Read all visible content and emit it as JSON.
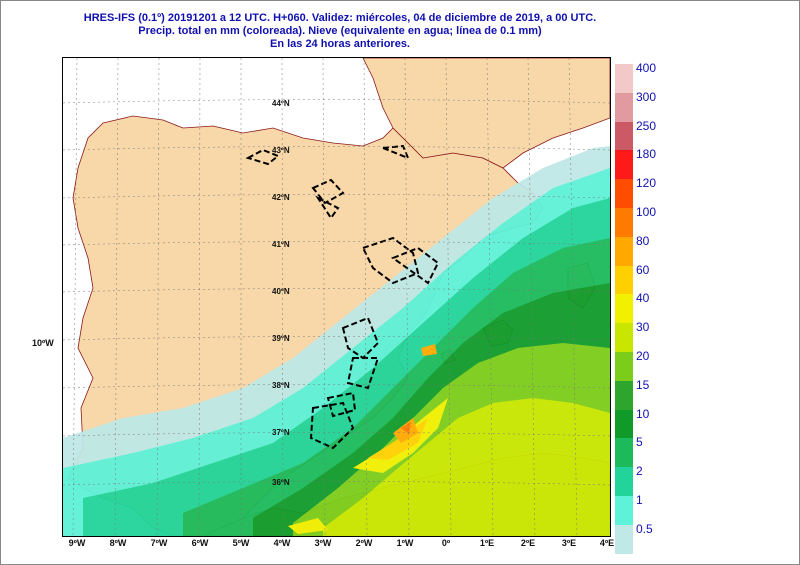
{
  "header": {
    "line1": "HRES-IFS (0.1º) 20191201 a 12 UTC.  H+060. Validez: miércoles, 04 de diciembre de 2019,  a  00 UTC.",
    "line2": "Precip. total en mm (coloreada). Nieve (equivalente en agua; línea de 0.1 mm)",
    "line3": "En las 24 horas anteriores."
  },
  "longitude_labels": [
    "9ºW",
    "8ºW",
    "7ºW",
    "6ºW",
    "5ºW",
    "4ºW",
    "3ºW",
    "2ºW",
    "1ºW",
    "0º",
    "1ºE",
    "2ºE",
    "3ºE",
    "4ºE"
  ],
  "latitude_labels": [
    "44ºN",
    "43ºN",
    "42ºN",
    "41ºN",
    "40ºN",
    "39ºN",
    "38ºN",
    "37ºN",
    "36ºN"
  ],
  "side_label": "10ºW",
  "legend": {
    "levels": [
      {
        "label": "400",
        "color": "#f2c8c8"
      },
      {
        "label": "300",
        "color": "#e09aa0"
      },
      {
        "label": "250",
        "color": "#cc5a66"
      },
      {
        "label": "180",
        "color": "#ff1a1a"
      },
      {
        "label": "120",
        "color": "#ff4d00"
      },
      {
        "label": "100",
        "color": "#ff7a00"
      },
      {
        "label": "80",
        "color": "#ffa800"
      },
      {
        "label": "60",
        "color": "#ffd000"
      },
      {
        "label": "40",
        "color": "#f0f000"
      },
      {
        "label": "30",
        "color": "#c8e600"
      },
      {
        "label": "20",
        "color": "#7ccc1a"
      },
      {
        "label": "15",
        "color": "#2ea62e"
      },
      {
        "label": "10",
        "color": "#109a2a"
      },
      {
        "label": "5",
        "color": "#1cba5a"
      },
      {
        "label": "2",
        "color": "#22d49a"
      },
      {
        "label": "1",
        "color": "#5ef2d8"
      },
      {
        "label": "0.5",
        "color": "#bfe8e6"
      }
    ]
  },
  "colors": {
    "land": "#f8d7a8",
    "sea": "#ffffff",
    "border": "#8a1a1a",
    "snow_line": "#000000",
    "text": "#1010b0"
  }
}
